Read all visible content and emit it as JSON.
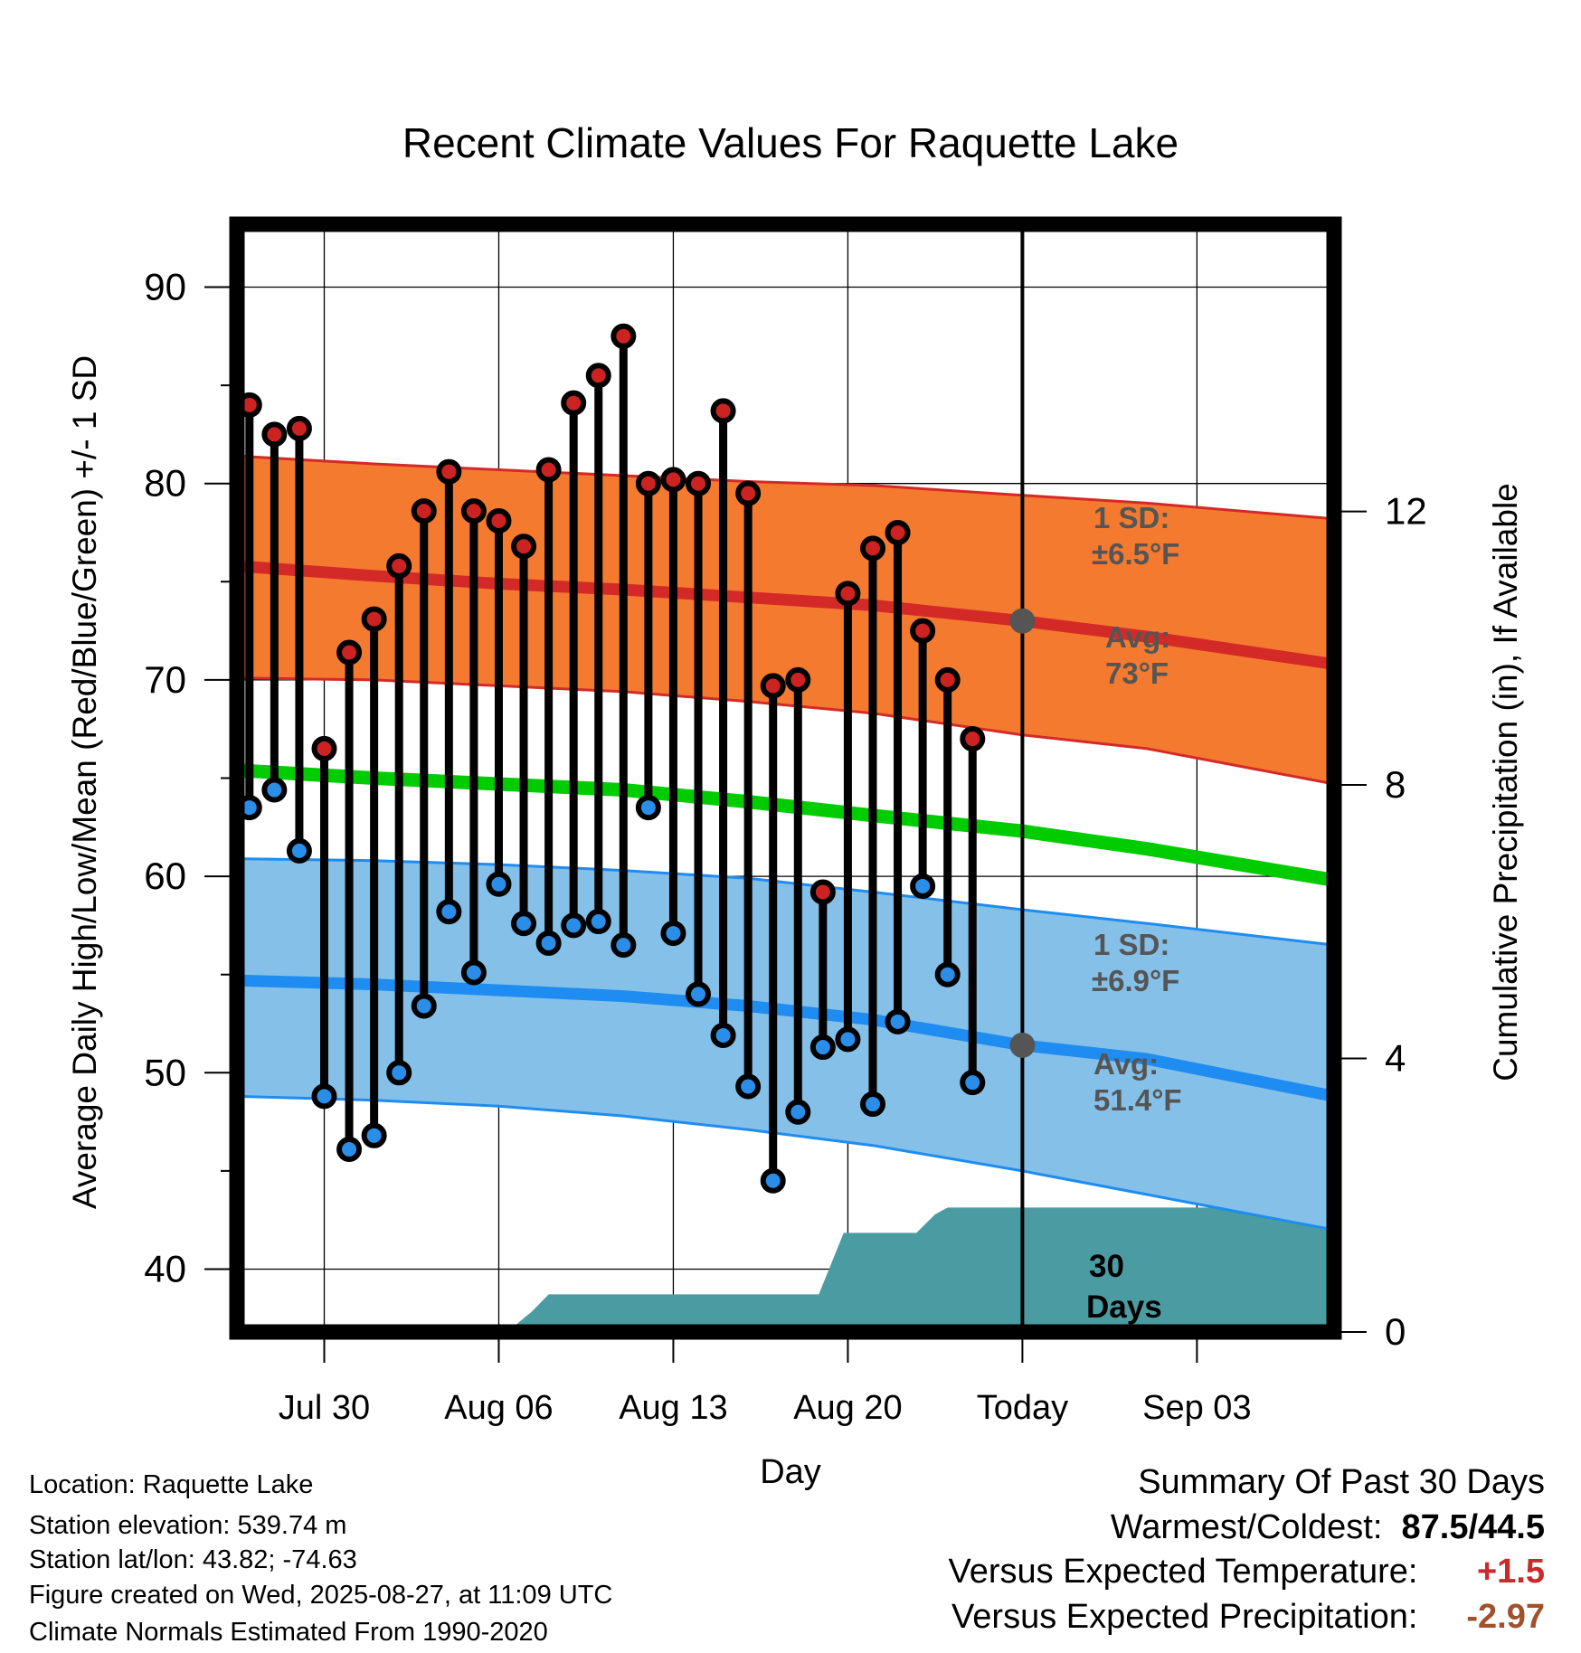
{
  "chart_data": {
    "type": "line",
    "title": "Recent Climate Values For Raquette Lake",
    "xlabel": "Day",
    "ylabel": "Average Daily High/Low/Mean (Red/Blue/Green) +/- 1 SD",
    "y2label": "Cumulative Precipitation (in), If Available",
    "ylim": [
      36.8,
      93.2
    ],
    "y2lim": [
      0,
      16.2
    ],
    "xlim": [
      "2025-07-26T12",
      "2025-09-08T12"
    ],
    "yticks": [
      "40",
      "50",
      "60",
      "70",
      "80",
      "90"
    ],
    "y2ticks": [
      "0",
      "4",
      "8",
      "12"
    ],
    "xticks": [
      {
        "date": "2025-07-30",
        "label": "Jul 30"
      },
      {
        "date": "2025-08-06",
        "label": "Aug 06"
      },
      {
        "date": "2025-08-13",
        "label": "Aug 13"
      },
      {
        "date": "2025-08-20",
        "label": "Aug 20"
      },
      {
        "date": "2025-08-27",
        "label": "Today"
      },
      {
        "date": "2025-09-03",
        "label": "Sep 03"
      }
    ],
    "grid": true,
    "today": "2025-08-27",
    "window_label_line1": "30",
    "window_label_line2": "Days",
    "daily": [
      {
        "date": "2025-07-27",
        "high": 84.0,
        "low": 63.5
      },
      {
        "date": "2025-07-28",
        "high": 82.5,
        "low": 64.4
      },
      {
        "date": "2025-07-29",
        "high": 82.8,
        "low": 61.3
      },
      {
        "date": "2025-07-30",
        "high": 66.5,
        "low": 48.8
      },
      {
        "date": "2025-07-31",
        "high": 71.4,
        "low": 46.1
      },
      {
        "date": "2025-08-01",
        "high": 73.1,
        "low": 46.8
      },
      {
        "date": "2025-08-02",
        "high": 75.8,
        "low": 50.0
      },
      {
        "date": "2025-08-03",
        "high": 78.6,
        "low": 53.4
      },
      {
        "date": "2025-08-04",
        "high": 80.6,
        "low": 58.2
      },
      {
        "date": "2025-08-05",
        "high": 78.6,
        "low": 55.1
      },
      {
        "date": "2025-08-06",
        "high": 78.1,
        "low": 59.6
      },
      {
        "date": "2025-08-07",
        "high": 76.8,
        "low": 57.6
      },
      {
        "date": "2025-08-08",
        "high": 80.7,
        "low": 56.6
      },
      {
        "date": "2025-08-09",
        "high": 84.1,
        "low": 57.5
      },
      {
        "date": "2025-08-10",
        "high": 85.5,
        "low": 57.7
      },
      {
        "date": "2025-08-11",
        "high": 87.5,
        "low": 56.5
      },
      {
        "date": "2025-08-12",
        "high": 80.0,
        "low": 63.5
      },
      {
        "date": "2025-08-13",
        "high": 80.2,
        "low": 57.1
      },
      {
        "date": "2025-08-14",
        "high": 80.0,
        "low": 54.0
      },
      {
        "date": "2025-08-15",
        "high": 83.7,
        "low": 51.9
      },
      {
        "date": "2025-08-16",
        "high": 79.5,
        "low": 49.3
      },
      {
        "date": "2025-08-17",
        "high": 69.7,
        "low": 44.5
      },
      {
        "date": "2025-08-18",
        "high": 70.0,
        "low": 48.0
      },
      {
        "date": "2025-08-19",
        "high": 59.2,
        "low": 51.3
      },
      {
        "date": "2025-08-20",
        "high": 74.4,
        "low": 51.7
      },
      {
        "date": "2025-08-21",
        "high": 76.7,
        "low": 48.4
      },
      {
        "date": "2025-08-22",
        "high": 77.5,
        "low": 52.6
      },
      {
        "date": "2025-08-23",
        "high": 72.5,
        "low": 59.5
      },
      {
        "date": "2025-08-24",
        "high": 70.0,
        "low": 55.0
      },
      {
        "date": "2025-08-25",
        "high": 67.0,
        "low": 49.5
      }
    ],
    "normals": {
      "dates": [
        "2025-07-26T12",
        "2025-08-01",
        "2025-08-06",
        "2025-08-11",
        "2025-08-16",
        "2025-08-21",
        "2025-08-27",
        "2025-09-01",
        "2025-09-08T12"
      ],
      "high_mean": [
        75.8,
        75.3,
        74.9,
        74.6,
        74.2,
        73.8,
        73.0,
        72.2,
        70.8
      ],
      "high_upper": [
        81.4,
        81.0,
        80.7,
        80.4,
        80.1,
        79.9,
        79.4,
        79.0,
        78.2
      ],
      "high_lower": [
        70.1,
        70.0,
        69.7,
        69.4,
        68.9,
        68.3,
        67.2,
        66.5,
        64.7
      ],
      "low_mean": [
        54.7,
        54.5,
        54.2,
        53.9,
        53.4,
        52.7,
        51.4,
        50.7,
        48.8
      ],
      "low_upper": [
        60.9,
        60.8,
        60.6,
        60.3,
        59.9,
        59.2,
        58.3,
        57.6,
        56.5
      ],
      "low_lower": [
        48.8,
        48.6,
        48.3,
        47.8,
        47.1,
        46.3,
        45.0,
        43.8,
        42.0
      ],
      "mean": [
        65.4,
        65.0,
        64.7,
        64.4,
        63.8,
        63.1,
        62.3,
        61.4,
        59.8
      ]
    },
    "precip": [
      {
        "date": "2025-07-26T12",
        "value": 0.0
      },
      {
        "date": "2025-08-06T08",
        "value": 0.0
      },
      {
        "date": "2025-08-07T08",
        "value": 0.3
      },
      {
        "date": "2025-08-08",
        "value": 0.55
      },
      {
        "date": "2025-08-18T20",
        "value": 0.55
      },
      {
        "date": "2025-08-19T20",
        "value": 1.45
      },
      {
        "date": "2025-08-22T18",
        "value": 1.45
      },
      {
        "date": "2025-08-23T12",
        "value": 1.72
      },
      {
        "date": "2025-08-24",
        "value": 1.82
      },
      {
        "date": "2025-09-08T12",
        "value": 1.82
      }
    ],
    "high_sd_label": "1 SD:",
    "high_sd_value": "±6.5°F",
    "high_avg_label": "Avg:",
    "high_avg_value": "73°F",
    "low_sd_label": "1 SD:",
    "low_sd_value": "±6.9°F",
    "low_avg_label": "Avg:",
    "low_avg_value": "51.4°F"
  },
  "colors": {
    "high_band": "#f47a30",
    "high_line": "#d42a27",
    "low_band": "#85c0e8",
    "low_line": "#1e8cf0",
    "mean_line": "#00cc00",
    "precip_fill": "#4a9ca2",
    "high_dot": "#cc2222",
    "low_dot": "#2a8ee8",
    "annotation": "#555555",
    "positive": "#cc2a2a",
    "negative": "#a0522d"
  },
  "location": {
    "line1": "Location: Raquette Lake",
    "line2": "Station elevation: 539.74 m",
    "line3": "Station lat/lon: 43.82; -74.63",
    "line4": "Figure created on Wed, 2025-08-27, at 11:09 UTC",
    "line5": "Climate Normals Estimated From 1990-2020"
  },
  "summary": {
    "heading": "Summary Of Past 30 Days",
    "warmest_coldest_label": "Warmest/Coldest:",
    "warmest_coldest_value": "87.5/44.5",
    "temp_label": "Versus Expected Temperature:",
    "temp_value": "+1.5",
    "precip_label": "Versus Expected Precipitation:",
    "precip_value": "-2.97"
  }
}
